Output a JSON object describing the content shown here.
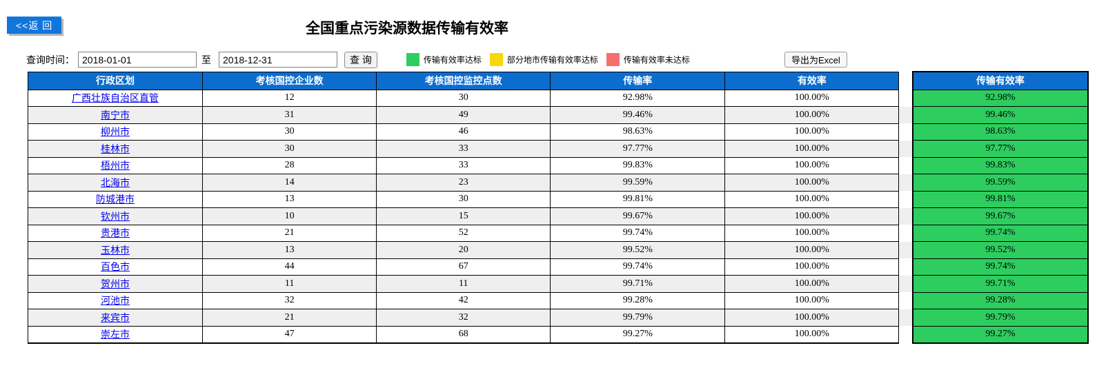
{
  "page": {
    "back_button": "<<返 回",
    "title": "全国重点污染源数据传输有效率"
  },
  "query": {
    "label": "查询时间：",
    "start_date": "2018-01-01",
    "to_label": "至",
    "end_date": "2018-12-31",
    "search_button": "查 询",
    "export_button": "导出为Excel"
  },
  "legend": [
    {
      "color": "#2dce5f",
      "label": "传输有效率达标"
    },
    {
      "color": "#f5d90a",
      "label": "部分地市传输有效率达标"
    },
    {
      "color": "#f56f6f",
      "label": "传输有效率未达标"
    }
  ],
  "colors": {
    "header_blue": "#0c6dce",
    "back_button_blue": "#1176dc",
    "alt_row_gray": "#efefef",
    "link_blue": "#0000ee",
    "status": {
      "green": "#2dce5f",
      "yellow": "#f5d90a",
      "red": "#f56f6f"
    }
  },
  "table": {
    "headers": [
      "行政区划",
      "考核国控企业数",
      "考核国控监控点数",
      "传输率",
      "有效率",
      "传输有效率"
    ],
    "rows": [
      {
        "region": "广西壮族自治区直管",
        "enterprises": "12",
        "points": "30",
        "trans_rate": "92.98%",
        "valid_rate": "100.00%",
        "trans_valid_rate": "92.98%",
        "status": "green"
      },
      {
        "region": "南宁市",
        "enterprises": "31",
        "points": "49",
        "trans_rate": "99.46%",
        "valid_rate": "100.00%",
        "trans_valid_rate": "99.46%",
        "status": "green"
      },
      {
        "region": "柳州市",
        "enterprises": "30",
        "points": "46",
        "trans_rate": "98.63%",
        "valid_rate": "100.00%",
        "trans_valid_rate": "98.63%",
        "status": "green"
      },
      {
        "region": "桂林市",
        "enterprises": "30",
        "points": "33",
        "trans_rate": "97.77%",
        "valid_rate": "100.00%",
        "trans_valid_rate": "97.77%",
        "status": "green"
      },
      {
        "region": "梧州市",
        "enterprises": "28",
        "points": "33",
        "trans_rate": "99.83%",
        "valid_rate": "100.00%",
        "trans_valid_rate": "99.83%",
        "status": "green"
      },
      {
        "region": "北海市",
        "enterprises": "14",
        "points": "23",
        "trans_rate": "99.59%",
        "valid_rate": "100.00%",
        "trans_valid_rate": "99.59%",
        "status": "green"
      },
      {
        "region": "防城港市",
        "enterprises": "13",
        "points": "30",
        "trans_rate": "99.81%",
        "valid_rate": "100.00%",
        "trans_valid_rate": "99.81%",
        "status": "green"
      },
      {
        "region": "钦州市",
        "enterprises": "10",
        "points": "15",
        "trans_rate": "99.67%",
        "valid_rate": "100.00%",
        "trans_valid_rate": "99.67%",
        "status": "green"
      },
      {
        "region": "贵港市",
        "enterprises": "21",
        "points": "52",
        "trans_rate": "99.74%",
        "valid_rate": "100.00%",
        "trans_valid_rate": "99.74%",
        "status": "green"
      },
      {
        "region": "玉林市",
        "enterprises": "13",
        "points": "20",
        "trans_rate": "99.52%",
        "valid_rate": "100.00%",
        "trans_valid_rate": "99.52%",
        "status": "green"
      },
      {
        "region": "百色市",
        "enterprises": "44",
        "points": "67",
        "trans_rate": "99.74%",
        "valid_rate": "100.00%",
        "trans_valid_rate": "99.74%",
        "status": "green"
      },
      {
        "region": "贺州市",
        "enterprises": "11",
        "points": "11",
        "trans_rate": "99.71%",
        "valid_rate": "100.00%",
        "trans_valid_rate": "99.71%",
        "status": "green"
      },
      {
        "region": "河池市",
        "enterprises": "32",
        "points": "42",
        "trans_rate": "99.28%",
        "valid_rate": "100.00%",
        "trans_valid_rate": "99.28%",
        "status": "green"
      },
      {
        "region": "来宾市",
        "enterprises": "21",
        "points": "32",
        "trans_rate": "99.79%",
        "valid_rate": "100.00%",
        "trans_valid_rate": "99.79%",
        "status": "green"
      },
      {
        "region": "崇左市",
        "enterprises": "47",
        "points": "68",
        "trans_rate": "99.27%",
        "valid_rate": "100.00%",
        "trans_valid_rate": "99.27%",
        "status": "green"
      }
    ]
  }
}
